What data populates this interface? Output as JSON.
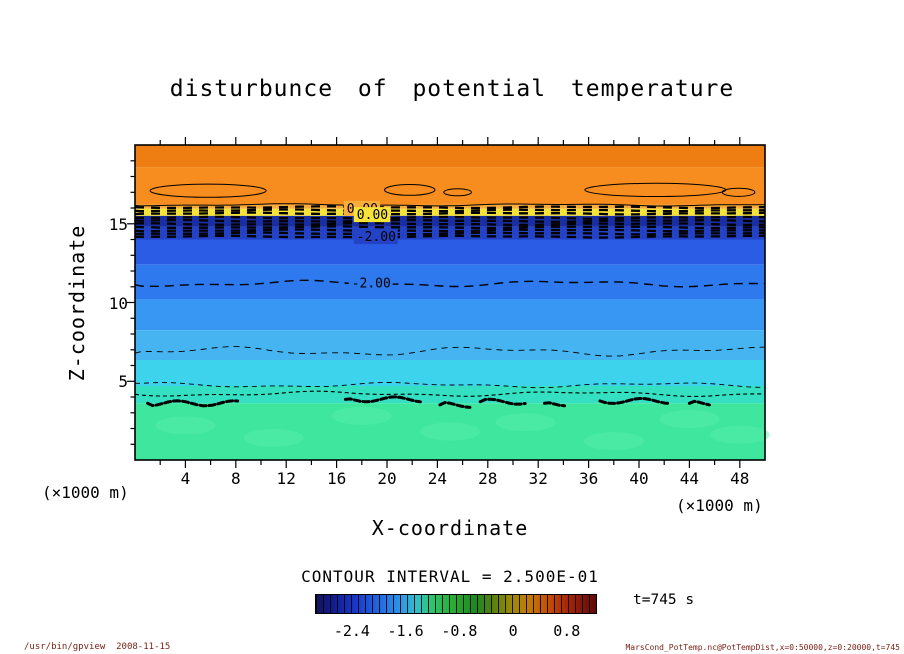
{
  "chart_data": {
    "type": "heatmap",
    "title": "disturbunce of potential temperature",
    "xlabel": "X-coordinate",
    "ylabel": "Z-coordinate",
    "x_units_label": "(×1000 m)",
    "x_range": [
      0,
      50
    ],
    "z_range": [
      0,
      20
    ],
    "x_ticks": [
      4,
      8,
      12,
      16,
      20,
      24,
      28,
      32,
      36,
      40,
      44,
      48
    ],
    "x_minor_step": 2,
    "y_ticks": [
      5,
      10,
      15
    ],
    "grid": false,
    "contour_interval": 0.25,
    "contour_interval_label": "CONTOUR INTERVAL = 2.500E-01",
    "time_label": "t=745 s",
    "bands": [
      {
        "z_top": 20.0,
        "z_bottom": 18.6,
        "value": 1.0,
        "color": "#EE7D12"
      },
      {
        "z_top": 18.6,
        "z_bottom": 16.2,
        "value": 0.9,
        "color": "#F68D1E"
      },
      {
        "z_top": 16.2,
        "z_bottom": 15.95,
        "value": 0.4,
        "color": "#FBAD3A"
      },
      {
        "z_top": 15.95,
        "z_bottom": 15.5,
        "value": 0.1,
        "color": "#F6E338"
      },
      {
        "z_top": 15.5,
        "z_bottom": 14.8,
        "value": -2.5,
        "color": "#1A2EA4"
      },
      {
        "z_top": 14.8,
        "z_bottom": 14.0,
        "value": -2.3,
        "color": "#2342C6"
      },
      {
        "z_top": 14.0,
        "z_bottom": 12.4,
        "value": -2.1,
        "color": "#2B5CE6"
      },
      {
        "z_top": 12.4,
        "z_bottom": 10.2,
        "value": -1.9,
        "color": "#2E79EE"
      },
      {
        "z_top": 10.2,
        "z_bottom": 8.25,
        "value": -1.6,
        "color": "#3897F2"
      },
      {
        "z_top": 8.25,
        "z_bottom": 6.35,
        "value": -1.2,
        "color": "#47B4F2"
      },
      {
        "z_top": 6.35,
        "z_bottom": 4.7,
        "value": -0.9,
        "color": "#3ED3EC"
      },
      {
        "z_top": 4.7,
        "z_bottom": 3.6,
        "value": -0.7,
        "color": "#35DFC2"
      },
      {
        "z_top": 3.6,
        "z_bottom": 0.0,
        "value": -0.5,
        "color": "#3EE79D"
      }
    ],
    "contours": {
      "zero_line_z": 16.2,
      "hatch_rows_z": [
        16.05,
        15.85,
        15.65,
        15.38,
        15.18,
        14.98,
        14.78,
        14.58,
        14.38,
        14.18
      ],
      "dashed_lines": [
        {
          "z": 11.2,
          "width": 1.4,
          "dash": "9 6",
          "amp": 2.2
        },
        {
          "z": 6.9,
          "width": 0.9,
          "dash": "6 5",
          "amp": 3.2
        },
        {
          "z": 4.76,
          "width": 0.9,
          "dash": "5 4",
          "amp": 1.8
        },
        {
          "z": 4.2,
          "width": 1.1,
          "dash": "4 3",
          "amp": 1.8
        }
      ],
      "loops": [
        {
          "cx": 5.8,
          "cz": 17.1,
          "rx": 4.6,
          "rz": 0.42
        },
        {
          "cx": 21.8,
          "cz": 17.15,
          "rx": 2.0,
          "rz": 0.34
        },
        {
          "cx": 25.6,
          "cz": 17.0,
          "rx": 1.1,
          "rz": 0.22
        },
        {
          "cx": 41.3,
          "cz": 17.15,
          "rx": 5.6,
          "rz": 0.42
        },
        {
          "cx": 47.9,
          "cz": 17.0,
          "rx": 1.3,
          "rz": 0.26
        }
      ],
      "blobs": [
        {
          "x0": 1.0,
          "x1": 8.3,
          "z": 3.6
        },
        {
          "x0": 16.7,
          "x1": 23.0,
          "z": 3.85
        },
        {
          "x0": 24.2,
          "x1": 26.6,
          "z": 3.5
        },
        {
          "x0": 27.4,
          "x1": 31.0,
          "z": 3.7
        },
        {
          "x0": 32.5,
          "x1": 34.1,
          "z": 3.6
        },
        {
          "x0": 36.9,
          "x1": 42.5,
          "z": 3.75
        },
        {
          "x0": 44.0,
          "x1": 45.6,
          "z": 3.6
        }
      ],
      "labels": [
        {
          "text": "0.00",
          "x": 16.8,
          "z": 15.95,
          "bg": "#FBAD3A"
        },
        {
          "text": "0.00",
          "x": 17.6,
          "z": 15.55,
          "bg": "#F6E338"
        },
        {
          "text": "-2.00",
          "x": 17.6,
          "z": 14.15,
          "bg": "#2342C6"
        },
        {
          "text": "-2.00",
          "x": 17.2,
          "z": 11.2,
          "bg": "#2E79EE"
        }
      ]
    },
    "colorbar": {
      "range": [
        -2.95,
        1.25
      ],
      "ticks": [
        {
          "value": -2.4,
          "label": "-2.4"
        },
        {
          "value": -1.6,
          "label": "-1.6"
        },
        {
          "value": -0.8,
          "label": "-0.8"
        },
        {
          "value": 0,
          "label": "0"
        },
        {
          "value": 0.8,
          "label": "0.8"
        }
      ],
      "gradient": [
        {
          "pos": 0,
          "color": "#14145A"
        },
        {
          "pos": 6,
          "color": "#101C8C"
        },
        {
          "pos": 14,
          "color": "#1838C8"
        },
        {
          "pos": 22,
          "color": "#2464E0"
        },
        {
          "pos": 30,
          "color": "#2E94E8"
        },
        {
          "pos": 36,
          "color": "#30C0C8"
        },
        {
          "pos": 42,
          "color": "#2EC268"
        },
        {
          "pos": 50,
          "color": "#28A830"
        },
        {
          "pos": 57,
          "color": "#1E8822"
        },
        {
          "pos": 63,
          "color": "#577F10"
        },
        {
          "pos": 70,
          "color": "#9C8A0A"
        },
        {
          "pos": 76,
          "color": "#C27A08"
        },
        {
          "pos": 83,
          "color": "#C24E08"
        },
        {
          "pos": 90,
          "color": "#A62408"
        },
        {
          "pos": 100,
          "color": "#5E0A0A"
        }
      ]
    }
  },
  "annotations": {
    "command_stamp": "/usr/bin/gpview  2008-11-15",
    "source_stamp": "MarsCond_PotTemp.nc@PotTempDist,x=0:50000,z=0:20000,t=745"
  }
}
